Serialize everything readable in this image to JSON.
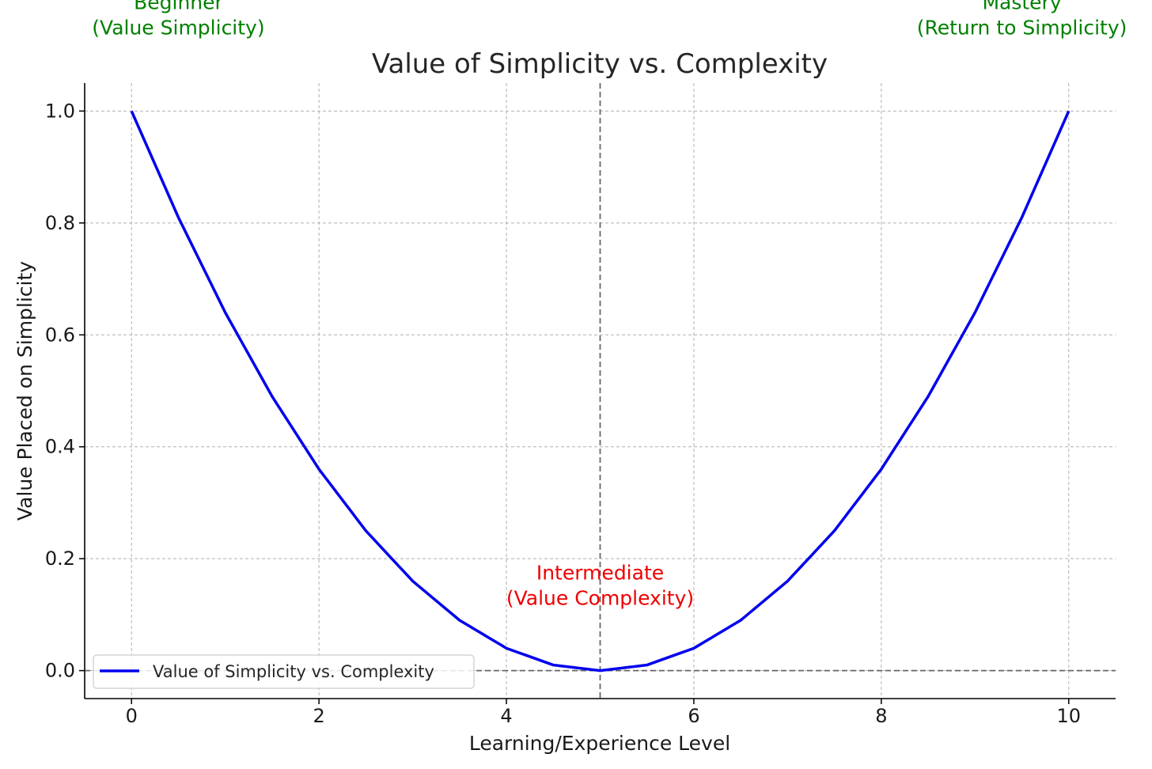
{
  "chart_data": {
    "type": "line",
    "title": "Value of Simplicity vs. Complexity",
    "xlabel": "Learning/Experience Level",
    "ylabel": "Value Placed on Simplicity",
    "xlim": [
      -0.5,
      10.5
    ],
    "ylim": [
      -0.05,
      1.05
    ],
    "xticks": [
      0,
      2,
      4,
      6,
      8,
      10
    ],
    "xtick_labels": [
      "0",
      "2",
      "4",
      "6",
      "8",
      "10"
    ],
    "yticks": [
      0.0,
      0.2,
      0.4,
      0.6,
      0.8,
      1.0
    ],
    "ytick_labels": [
      "0.0",
      "0.2",
      "0.4",
      "0.6",
      "0.8",
      "1.0"
    ],
    "grid": true,
    "legend_position": "bottom-left",
    "series": [
      {
        "name": "Value of Simplicity vs. Complexity",
        "color": "#0000ee",
        "x": [
          0,
          0.5,
          1,
          1.5,
          2,
          2.5,
          3,
          3.5,
          4,
          4.5,
          5,
          5.5,
          6,
          6.5,
          7,
          7.5,
          8,
          8.5,
          9,
          9.5,
          10
        ],
        "y": [
          1.0,
          0.81,
          0.64,
          0.49,
          0.36,
          0.25,
          0.16,
          0.09,
          0.04,
          0.01,
          0.0,
          0.01,
          0.04,
          0.09,
          0.16,
          0.25,
          0.36,
          0.49,
          0.64,
          0.81,
          1.0
        ]
      }
    ],
    "reference_lines": [
      {
        "orientation": "vertical",
        "value": 5,
        "style": "dashed",
        "color": "#666666"
      },
      {
        "orientation": "horizontal",
        "value": 0,
        "style": "dashed",
        "color": "#666666"
      }
    ],
    "annotations": [
      {
        "text": [
          "Beginner",
          "(Value Simplicity)"
        ],
        "x": 0.5,
        "y": 1.15,
        "color": "#008000"
      },
      {
        "text": [
          "Intermediate",
          "(Value Complexity)"
        ],
        "x": 5,
        "y": 0.13,
        "color": "#ee0000"
      },
      {
        "text": [
          "Mastery",
          "(Return to Simplicity)"
        ],
        "x": 9.5,
        "y": 1.15,
        "color": "#008000"
      }
    ]
  }
}
